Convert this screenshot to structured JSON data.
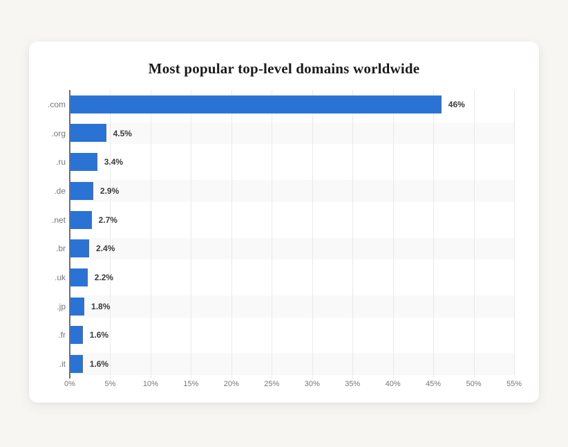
{
  "card": {
    "title": "Most popular top-level domains worldwide"
  },
  "chart_data": {
    "type": "bar",
    "orientation": "horizontal",
    "title": "Most popular top-level domains worldwide",
    "categories": [
      ".com",
      ".org",
      ".ru",
      ".de",
      ".net",
      ".br",
      ".uk",
      ".jp",
      ".fr",
      ".it"
    ],
    "values": [
      46,
      4.5,
      3.4,
      2.9,
      2.7,
      2.4,
      2.2,
      1.8,
      1.6,
      1.6
    ],
    "value_labels": [
      "46%",
      "4.5%",
      "3.4%",
      "2.9%",
      "2.7%",
      "2.4%",
      "2.2%",
      "1.8%",
      "1.6%",
      "1.6%"
    ],
    "x_ticks": [
      "0%",
      "5%",
      "10%",
      "15%",
      "20%",
      "25%",
      "30%",
      "35%",
      "40%",
      "45%",
      "50%",
      "55%"
    ],
    "xlim": [
      0,
      55
    ],
    "xlabel": "",
    "ylabel": "",
    "grid": true,
    "legend": false,
    "row_striping": "alternate-even-rows",
    "colors": {
      "bar": "#2a73d4",
      "stripe": "#f9f9f9",
      "gridline": "#e9e9e9",
      "axis_line": "#6e6e6e",
      "category_label": "#767676",
      "tick_label": "#767676",
      "value_label": "#3a3a3a",
      "title": "#1b1b1b",
      "card_background": "#ffffff",
      "page_background": "#f7f6f3"
    }
  }
}
